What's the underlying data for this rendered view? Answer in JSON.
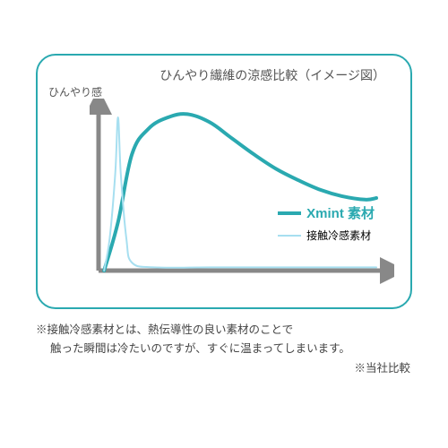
{
  "title": "ひんやり繊維の涼感比較（イメージ図）",
  "y_label": "ひんやり感",
  "legend": {
    "series1": {
      "label": "Xmint 素材",
      "color": "#2aa9b0",
      "thick": true
    },
    "series2": {
      "label": "接触冷感素材",
      "color": "#a7dff0",
      "thick": false
    }
  },
  "footnote_line1": "※接触冷感素材とは、熱伝導性の良い素材のことで",
  "footnote_line2": "　 触った瞬間は冷たいのですが、すぐに温まってしまいます。",
  "footnote_right": "※当社比較",
  "chart": {
    "type": "line",
    "background": "#ffffff",
    "border_color": "#2aa9b0",
    "axis_color": "#888888",
    "axis_width": 5,
    "x_range": [
      0,
      100
    ],
    "y_range": [
      0,
      100
    ],
    "series": [
      {
        "name": "Xmint",
        "color": "#2aa9b0",
        "stroke_width": 4,
        "points": [
          [
            2,
            0
          ],
          [
            7,
            30
          ],
          [
            12,
            72
          ],
          [
            18,
            88
          ],
          [
            25,
            95
          ],
          [
            32,
            97
          ],
          [
            40,
            92
          ],
          [
            48,
            82
          ],
          [
            56,
            72
          ],
          [
            64,
            63
          ],
          [
            72,
            56
          ],
          [
            80,
            50
          ],
          [
            88,
            46
          ],
          [
            96,
            44
          ],
          [
            100,
            45
          ]
        ]
      },
      {
        "name": "contact-cool",
        "color": "#a7dff0",
        "stroke_width": 2,
        "points": [
          [
            2,
            0
          ],
          [
            4,
            20
          ],
          [
            6,
            60
          ],
          [
            7,
            95
          ],
          [
            8,
            60
          ],
          [
            10,
            20
          ],
          [
            12,
            5
          ],
          [
            20,
            2
          ],
          [
            40,
            2
          ],
          [
            60,
            2
          ],
          [
            80,
            2
          ],
          [
            100,
            2
          ]
        ]
      }
    ]
  }
}
